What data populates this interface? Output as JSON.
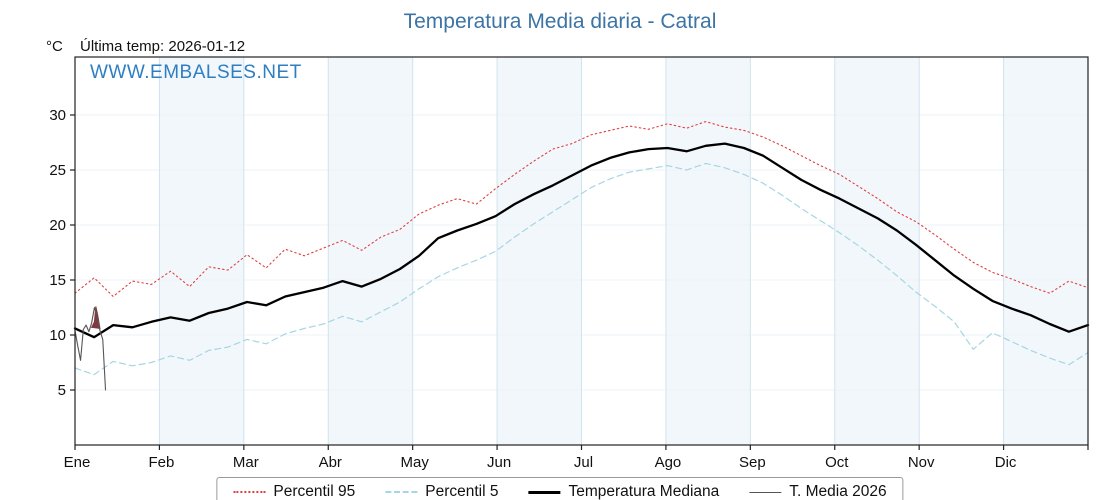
{
  "title": "Temperatura Media diaria - Catral",
  "unit_label": "°C",
  "last_temp_label": "Última temp: 2026-01-12",
  "watermark": "WWW.EMBALSES.NET",
  "colors": {
    "title": "#3c74a6",
    "watermark": "#2e7fc2",
    "p95": "#e04040",
    "p5": "#a6d6e2",
    "median": "#000000",
    "media2026": "#555555",
    "anomaly_fill": "#7a2733",
    "grid": "#cfe3f0",
    "band": "#e8f1f8",
    "border": "#222222"
  },
  "legend": [
    "Percentil 95",
    "Percentil 5",
    "Temperatura Mediana",
    "T. Media 2026"
  ],
  "chart_data": {
    "type": "line",
    "title": "Temperatura Media diaria - Catral",
    "x_months": [
      "Ene",
      "Feb",
      "Mar",
      "Abr",
      "May",
      "Jun",
      "Jul",
      "Ago",
      "Sep",
      "Oct",
      "Nov",
      "Dic"
    ],
    "yticks": [
      5,
      10,
      15,
      20,
      25,
      30
    ],
    "ylim": [
      0,
      35.3
    ],
    "grid": true,
    "legend_position": "bottom",
    "series": [
      {
        "name": "Percentil 95",
        "color": "#e04040",
        "dash": "1.5 3",
        "width": 1.1,
        "values": [
          13.8,
          15.2,
          13.5,
          14.9,
          14.6,
          15.8,
          14.4,
          16.2,
          15.9,
          17.3,
          16.1,
          17.8,
          17.2,
          17.9,
          18.6,
          17.7,
          18.9,
          19.6,
          21.0,
          21.8,
          22.4,
          21.9,
          23.3,
          24.6,
          25.8,
          26.9,
          27.4,
          28.2,
          28.6,
          29.0,
          28.7,
          29.2,
          28.8,
          29.4,
          28.9,
          28.6,
          28.0,
          27.2,
          26.3,
          25.4,
          24.6,
          23.5,
          22.4,
          21.2,
          20.3,
          19.1,
          17.8,
          16.6,
          15.7,
          15.1,
          14.4,
          13.8,
          14.9,
          14.3
        ]
      },
      {
        "name": "Percentil 5",
        "color": "#a6d6e2",
        "dash": "6 4",
        "width": 1.2,
        "values": [
          7.0,
          6.4,
          7.6,
          7.2,
          7.5,
          8.1,
          7.7,
          8.6,
          8.9,
          9.6,
          9.2,
          10.1,
          10.6,
          11.0,
          11.7,
          11.2,
          12.1,
          13.0,
          14.2,
          15.3,
          16.1,
          16.8,
          17.6,
          18.9,
          20.1,
          21.2,
          22.3,
          23.4,
          24.2,
          24.8,
          25.1,
          25.4,
          25.0,
          25.6,
          25.2,
          24.6,
          23.8,
          22.7,
          21.5,
          20.4,
          19.3,
          18.1,
          16.8,
          15.4,
          13.9,
          12.6,
          11.2,
          8.7,
          10.2,
          9.4,
          8.6,
          7.9,
          7.3,
          8.4
        ]
      },
      {
        "name": "Temperatura Mediana",
        "color": "#000000",
        "dash": "",
        "width": 2.3,
        "values": [
          10.6,
          9.8,
          10.9,
          10.7,
          11.2,
          11.6,
          11.3,
          12.0,
          12.4,
          13.0,
          12.7,
          13.5,
          13.9,
          14.3,
          14.9,
          14.4,
          15.1,
          16.0,
          17.2,
          18.8,
          19.5,
          20.1,
          20.8,
          21.9,
          22.8,
          23.6,
          24.5,
          25.4,
          26.1,
          26.6,
          26.9,
          27.0,
          26.7,
          27.2,
          27.4,
          27.0,
          26.3,
          25.2,
          24.1,
          23.2,
          22.4,
          21.5,
          20.6,
          19.5,
          18.2,
          16.8,
          15.4,
          14.2,
          13.1,
          12.4,
          11.8,
          11.0,
          10.3,
          10.9
        ]
      },
      {
        "name": "T. Media 2026",
        "color": "#555555",
        "dash": "",
        "width": 1.1,
        "x_days": [
          0,
          1,
          2,
          3,
          4,
          5,
          6,
          7,
          8,
          9,
          10,
          11
        ],
        "values": [
          10.4,
          9.0,
          7.7,
          10.5,
          10.9,
          10.3,
          11.1,
          12.5,
          11.7,
          10.4,
          9.6,
          5.0
        ]
      }
    ],
    "anomaly_polygon_day_temp": [
      [
        6,
        10.7
      ],
      [
        7,
        11.2
      ],
      [
        7.5,
        12.6
      ],
      [
        8.2,
        11.8
      ],
      [
        9,
        10.6
      ]
    ]
  }
}
